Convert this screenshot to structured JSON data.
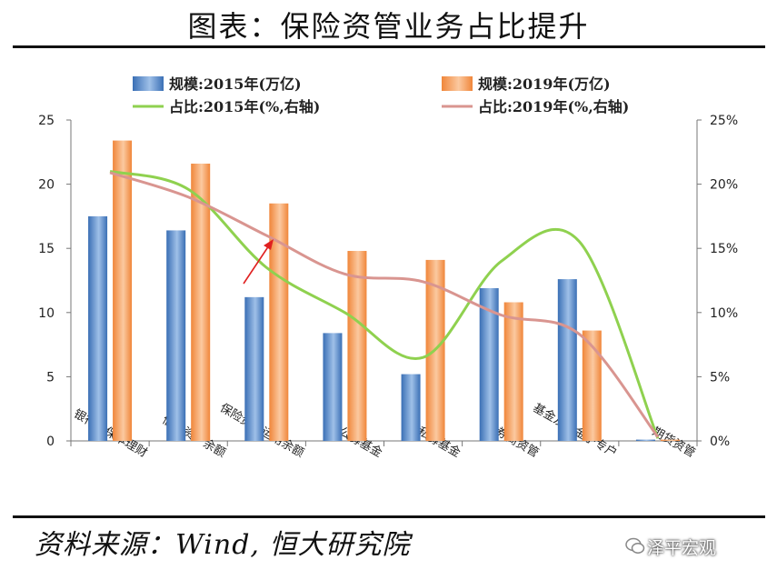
{
  "header": {
    "title": "图表：保险资管业务占比提升"
  },
  "footer": {
    "source": "资料来源：Wind, 恒大研究院",
    "watermark": "泽平宏观"
  },
  "colors": {
    "bar_2015": "#3a6fb5",
    "bar_2019": "#f0863a",
    "line_2015": "#8fd14f",
    "line_2019": "#d99590",
    "arrow": "#e02020"
  },
  "chart_data": {
    "type": "bar",
    "categories": [
      "银行非保本理财",
      "信托资产余额",
      "保险资金运用余额",
      "公募基金",
      "私募基金",
      "券商资管",
      "基金及基金子专户",
      "期货资管"
    ],
    "series": [
      {
        "name": "规模:2015年(万亿)",
        "kind": "bar",
        "axis": "left",
        "values": [
          17.5,
          16.4,
          11.2,
          8.4,
          5.2,
          11.9,
          12.6,
          0.1
        ]
      },
      {
        "name": "规模:2019年(万亿)",
        "kind": "bar",
        "axis": "left",
        "values": [
          23.4,
          21.6,
          18.5,
          14.8,
          14.1,
          10.8,
          8.6,
          0.1
        ]
      },
      {
        "name": "占比:2015年(%,右轴)",
        "kind": "line",
        "axis": "right",
        "values": [
          21.0,
          19.6,
          13.5,
          10.0,
          6.5,
          14.0,
          15.5,
          0.2
        ]
      },
      {
        "name": "占比:2019年(%,右轴)",
        "kind": "line",
        "axis": "right",
        "values": [
          20.9,
          19.0,
          16.0,
          13.0,
          12.4,
          9.8,
          8.3,
          0.3
        ]
      }
    ],
    "ylim_left": [
      0,
      25
    ],
    "yticks_left": [
      "0",
      "5",
      "10",
      "15",
      "20",
      "25"
    ],
    "ylim_right": [
      0,
      25
    ],
    "yticks_right": [
      "0%",
      "5%",
      "10%",
      "15%",
      "20%",
      "25%"
    ],
    "legend": "top",
    "annotation": "arrow pointing to 保险资金运用余额"
  }
}
